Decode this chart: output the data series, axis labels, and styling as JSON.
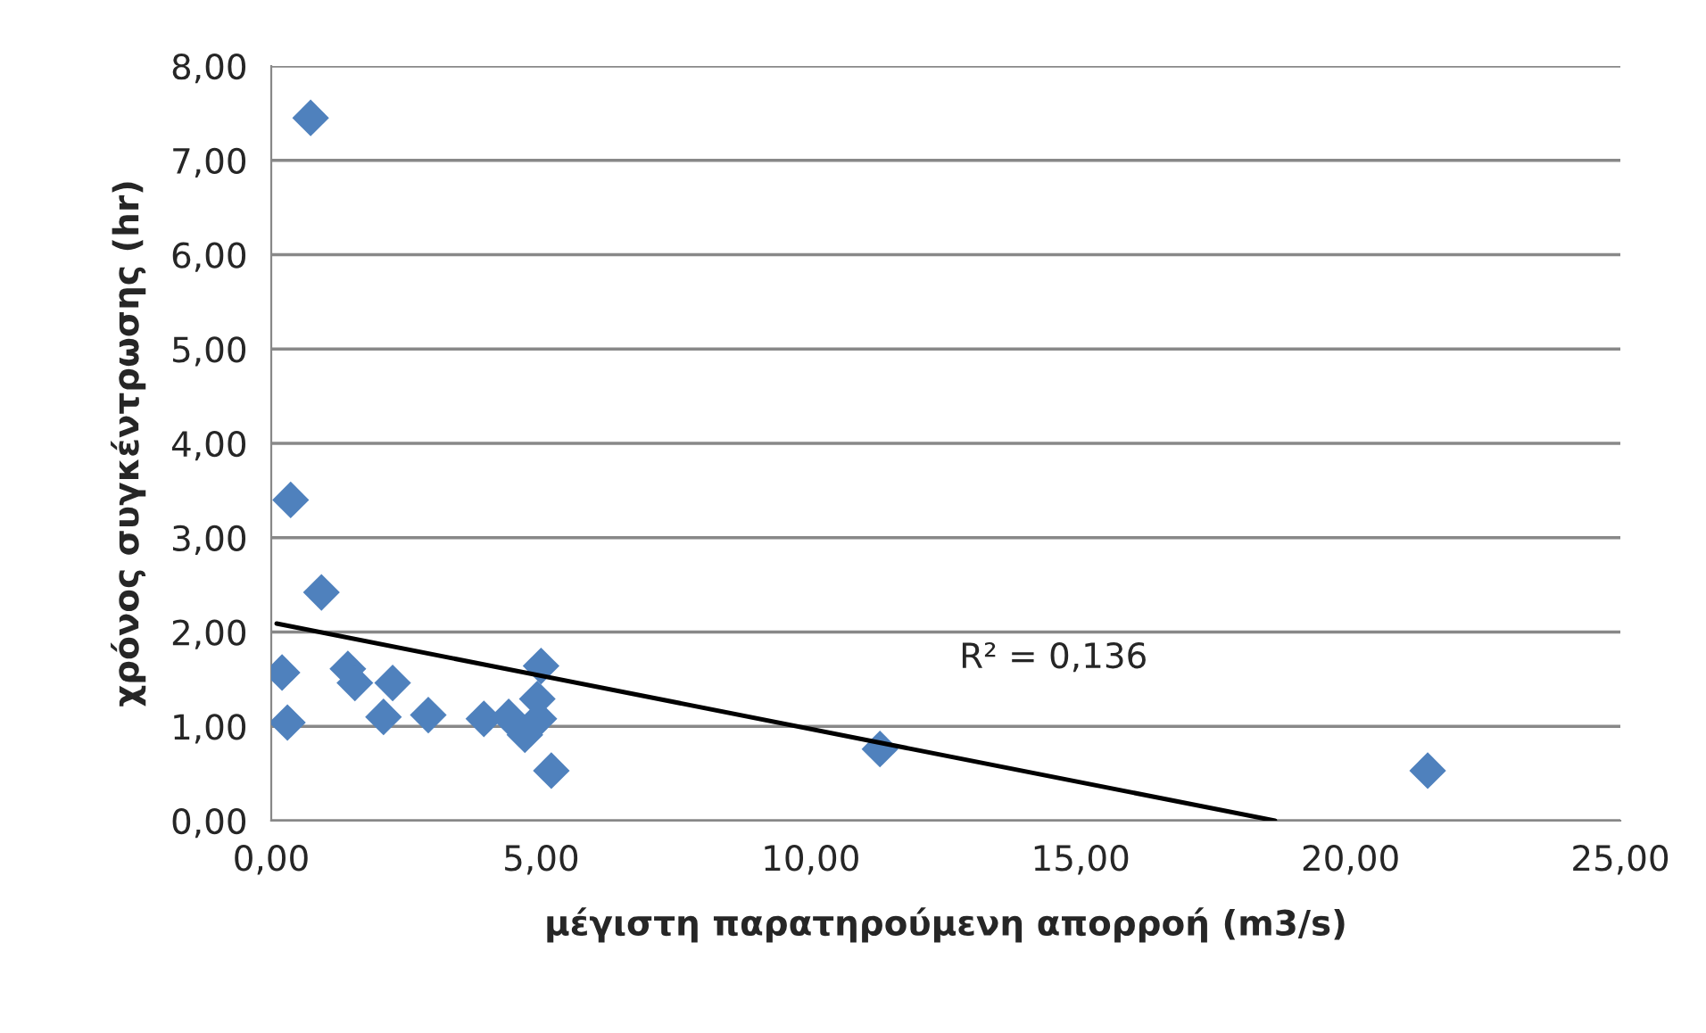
{
  "chart_data": {
    "type": "scatter",
    "xlabel": "μέγιστη παρατηρούμενη απορροή (m3/s)",
    "ylabel": "χρόνος συγκέντρωσης (hr)",
    "series": [
      {
        "color": "#4f81bd",
        "marker": "diamond",
        "x": [
          0.73,
          0.36,
          0.93,
          0.2,
          0.3,
          1.42,
          1.55,
          2.25,
          2.08,
          2.91,
          3.94,
          4.4,
          4.7,
          4.96,
          4.93,
          5.0,
          5.19,
          11.28,
          21.43
        ],
        "values": [
          7.45,
          3.4,
          2.42,
          1.57,
          1.04,
          1.61,
          1.46,
          1.46,
          1.1,
          1.12,
          1.08,
          1.1,
          0.91,
          1.08,
          1.29,
          1.64,
          0.53,
          0.76,
          0.53
        ]
      },
      {
        "type": "line",
        "color": "#000000",
        "x": [
          0.1,
          18.6
        ],
        "values": [
          2.09,
          0.0
        ]
      }
    ],
    "annotations": [
      "R² = 0,136"
    ],
    "xlim": [
      0,
      25
    ],
    "ylim": [
      0,
      8
    ],
    "xticks": [
      {
        "value": 0,
        "label": "0,00"
      },
      {
        "value": 5,
        "label": "5,00"
      },
      {
        "value": 10,
        "label": "10,00"
      },
      {
        "value": 15,
        "label": "15,00"
      },
      {
        "value": 20,
        "label": "20,00"
      },
      {
        "value": 25,
        "label": "25,00"
      }
    ],
    "yticks": [
      {
        "value": 0,
        "label": "0,00"
      },
      {
        "value": 1,
        "label": "1,00"
      },
      {
        "value": 2,
        "label": "2,00"
      },
      {
        "value": 3,
        "label": "3,00"
      },
      {
        "value": 4,
        "label": "4,00"
      },
      {
        "value": 5,
        "label": "5,00"
      },
      {
        "value": 6,
        "label": "6,00"
      },
      {
        "value": 7,
        "label": "7,00"
      },
      {
        "value": 8,
        "label": "8,00"
      }
    ],
    "grid": "y"
  }
}
